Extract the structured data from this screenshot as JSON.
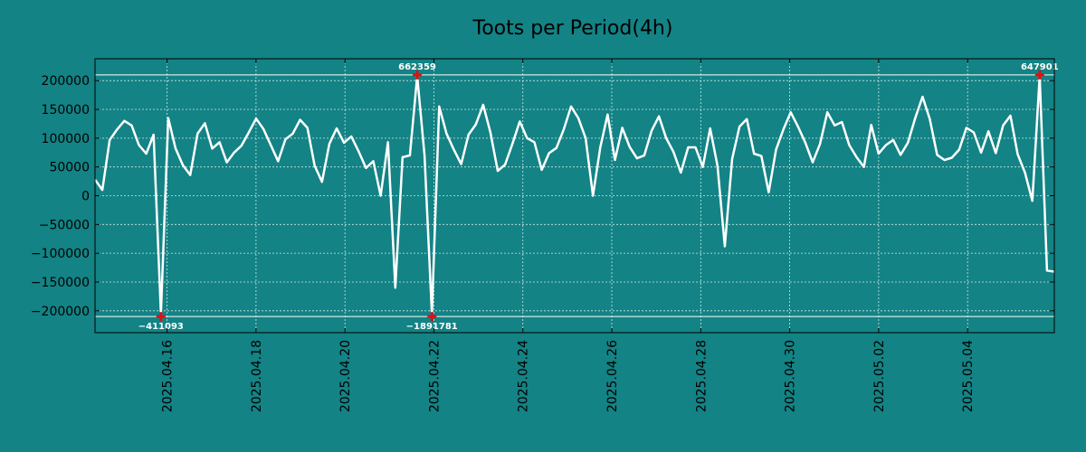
{
  "chart_data": {
    "type": "line",
    "title": "Toots per Period(4h)",
    "xlabel": "",
    "ylabel": "",
    "grid": true,
    "x_start_day": 14.38,
    "x_end_day": 35.95,
    "ylim": [
      -238000,
      238000
    ],
    "x_ticks": [
      {
        "day": 16,
        "label": "2025.04.16"
      },
      {
        "day": 18,
        "label": "2025.04.18"
      },
      {
        "day": 20,
        "label": "2025.04.20"
      },
      {
        "day": 22,
        "label": "2025.04.22"
      },
      {
        "day": 24,
        "label": "2025.04.24"
      },
      {
        "day": 26,
        "label": "2025.04.26"
      },
      {
        "day": 28,
        "label": "2025.04.28"
      },
      {
        "day": 30,
        "label": "2025.04.30"
      },
      {
        "day": 32,
        "label": "2025.05.02"
      },
      {
        "day": 34,
        "label": "2025.05.04"
      }
    ],
    "y_ticks": [
      {
        "value": 200000,
        "label": "200000"
      },
      {
        "value": 150000,
        "label": "150000"
      },
      {
        "value": 100000,
        "label": "100000"
      },
      {
        "value": 50000,
        "label": "50000"
      },
      {
        "value": 0,
        "label": "0"
      },
      {
        "value": -50000,
        "label": "−50000"
      },
      {
        "value": -100000,
        "label": "−100000"
      },
      {
        "value": -150000,
        "label": "−150000"
      },
      {
        "value": -200000,
        "label": "−200000"
      }
    ],
    "clip_lines": [
      210000,
      -210000
    ],
    "series": [
      {
        "name": "Toots",
        "color": "#ffffff",
        "values": [
          28000,
          10000,
          97000,
          115000,
          130000,
          122000,
          88000,
          73000,
          106000,
          -205000,
          135000,
          82000,
          53000,
          36000,
          108000,
          126000,
          82000,
          93000,
          58000,
          75000,
          87000,
          110000,
          134000,
          116000,
          88000,
          60000,
          98000,
          108000,
          132000,
          118000,
          52000,
          24000,
          90000,
          117000,
          92000,
          103000,
          77000,
          48000,
          60000,
          0,
          93000,
          -160000,
          67000,
          70000,
          208000,
          70000,
          -205000,
          155000,
          108000,
          80000,
          55000,
          106000,
          124000,
          158000,
          110000,
          43000,
          54000,
          90000,
          129000,
          100000,
          93000,
          45000,
          74000,
          83000,
          115000,
          155000,
          135000,
          100000,
          0,
          84000,
          141000,
          62000,
          118000,
          85000,
          65000,
          70000,
          113000,
          138000,
          100000,
          76000,
          40000,
          84000,
          84000,
          50000,
          117000,
          52000,
          -88000,
          64000,
          120000,
          133000,
          73000,
          69000,
          6000,
          80000,
          115000,
          145000,
          120000,
          92000,
          58000,
          90000,
          145000,
          122000,
          128000,
          88000,
          67000,
          50000,
          123000,
          73000,
          88000,
          97000,
          71000,
          92000,
          135000,
          172000,
          133000,
          71000,
          62000,
          66000,
          80000,
          118000,
          110000,
          75000,
          112000,
          74000,
          122000,
          139000,
          72000,
          40000,
          -9000,
          208000,
          -130000,
          -132000
        ]
      }
    ],
    "annotations": [
      {
        "label": "−411093",
        "value": -210000,
        "index": 9
      },
      {
        "label": "662359",
        "value": 210000,
        "index": 44
      },
      {
        "label": "−1891781",
        "value": -210000,
        "index": 46
      },
      {
        "label": "647901",
        "value": 210000,
        "index": 129
      }
    ]
  }
}
